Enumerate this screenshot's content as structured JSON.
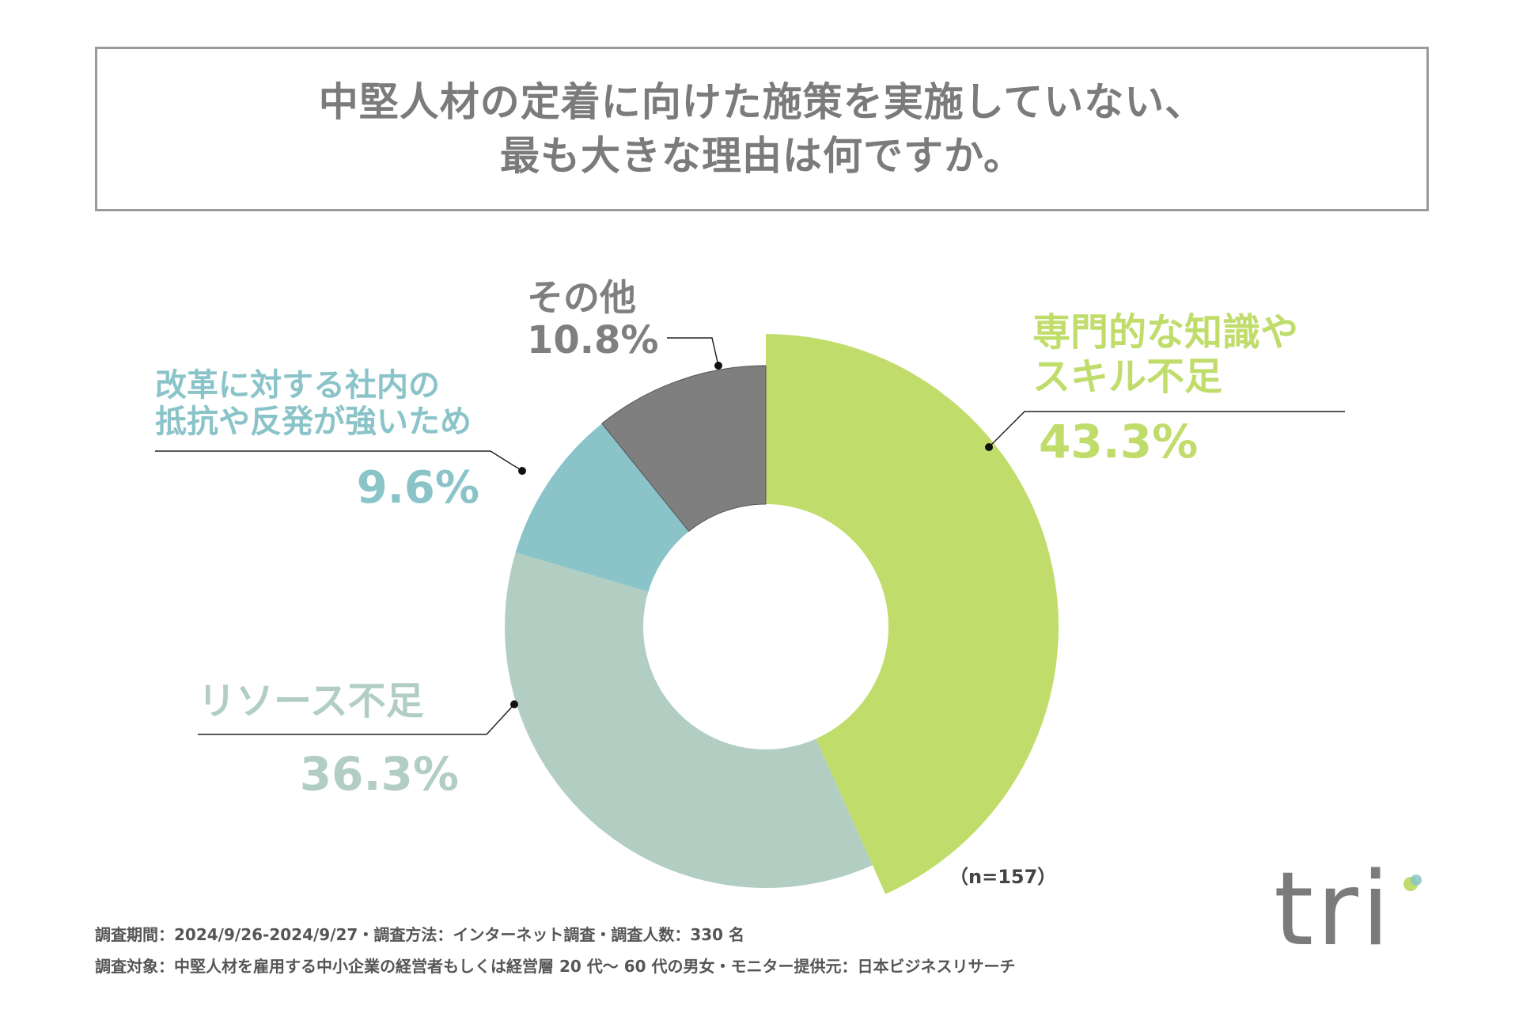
{
  "title": {
    "line1": "中堅人材の定着に向けた施策を実施していない、",
    "line2": "最も大きな理由は何ですか。"
  },
  "chart_data": {
    "type": "pie",
    "categories": [
      "専門的な知識やスキル不足",
      "リソース不足",
      "改革に対する社内の抵抗や反発が強いため",
      "その他"
    ],
    "values": [
      43.3,
      36.3,
      9.6,
      10.8
    ],
    "colors": [
      "#c0dd6b",
      "#b2cec3",
      "#8ac4c8",
      "#7f7f7f"
    ],
    "labels": [
      {
        "name_lines": [
          "専門的な知識や",
          "スキル不足"
        ],
        "pct": "43.3%"
      },
      {
        "name_lines": [
          "リソース不足"
        ],
        "pct": "36.3%"
      },
      {
        "name_lines": [
          "改革に対する社内の",
          "抵抗や反発が強いため"
        ],
        "pct": "9.6%"
      },
      {
        "name_lines": [
          "その他"
        ],
        "pct": "10.8%"
      }
    ],
    "style": "donut"
  },
  "sample": "（n=157）",
  "footer": {
    "line1": "調査期間：2024/9/26-2024/9/27・調査方法：インターネット調査・調査人数：330 名",
    "line2": "調査対象：中堅人材を雇用する中小企業の経営者もしくは経営層 20 代～ 60 代の男女・モニター提供元：日本ビジネスリサーチ"
  },
  "logo": {
    "text": "tri",
    "dot_colors": [
      "#c0dd6b",
      "#8ac4c8"
    ]
  }
}
